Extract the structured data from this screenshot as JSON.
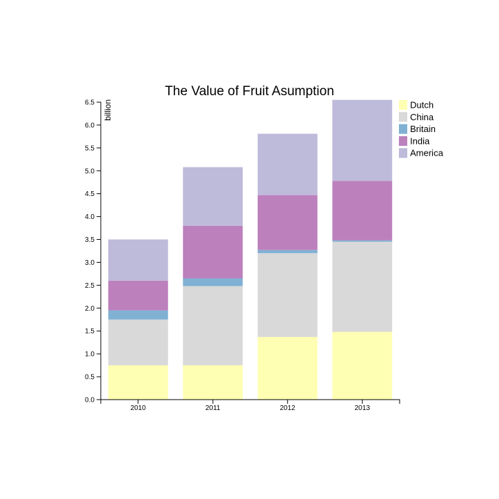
{
  "chart_data": {
    "type": "bar",
    "stacked": true,
    "title": "The Value of Fruit Asumption",
    "xlabel": "",
    "ylabel": "billion",
    "categories": [
      "2010",
      "2011",
      "2012",
      "2013"
    ],
    "ylim": [
      0,
      6.5
    ],
    "yticks": [
      "0.0",
      "0.5",
      "1.0",
      "1.5",
      "2.0",
      "2.5",
      "3.0",
      "3.5",
      "4.0",
      "4.5",
      "5.0",
      "5.5",
      "6.0",
      "6.5"
    ],
    "legend_position": "top-right",
    "grid": false,
    "series": [
      {
        "name": "Dutch",
        "color": "#ffffb3",
        "values": [
          0.75,
          0.75,
          1.37,
          1.48
        ]
      },
      {
        "name": "China",
        "color": "#d9d9d9",
        "values": [
          1.0,
          1.73,
          1.83,
          1.97
        ]
      },
      {
        "name": "Britain",
        "color": "#80b1d3",
        "values": [
          0.2,
          0.17,
          0.07,
          0.03
        ]
      },
      {
        "name": "India",
        "color": "#bc80bd",
        "values": [
          0.65,
          1.15,
          1.2,
          1.3
        ]
      },
      {
        "name": "America",
        "color": "#bebada",
        "values": [
          0.9,
          1.28,
          1.34,
          1.77
        ]
      }
    ]
  }
}
